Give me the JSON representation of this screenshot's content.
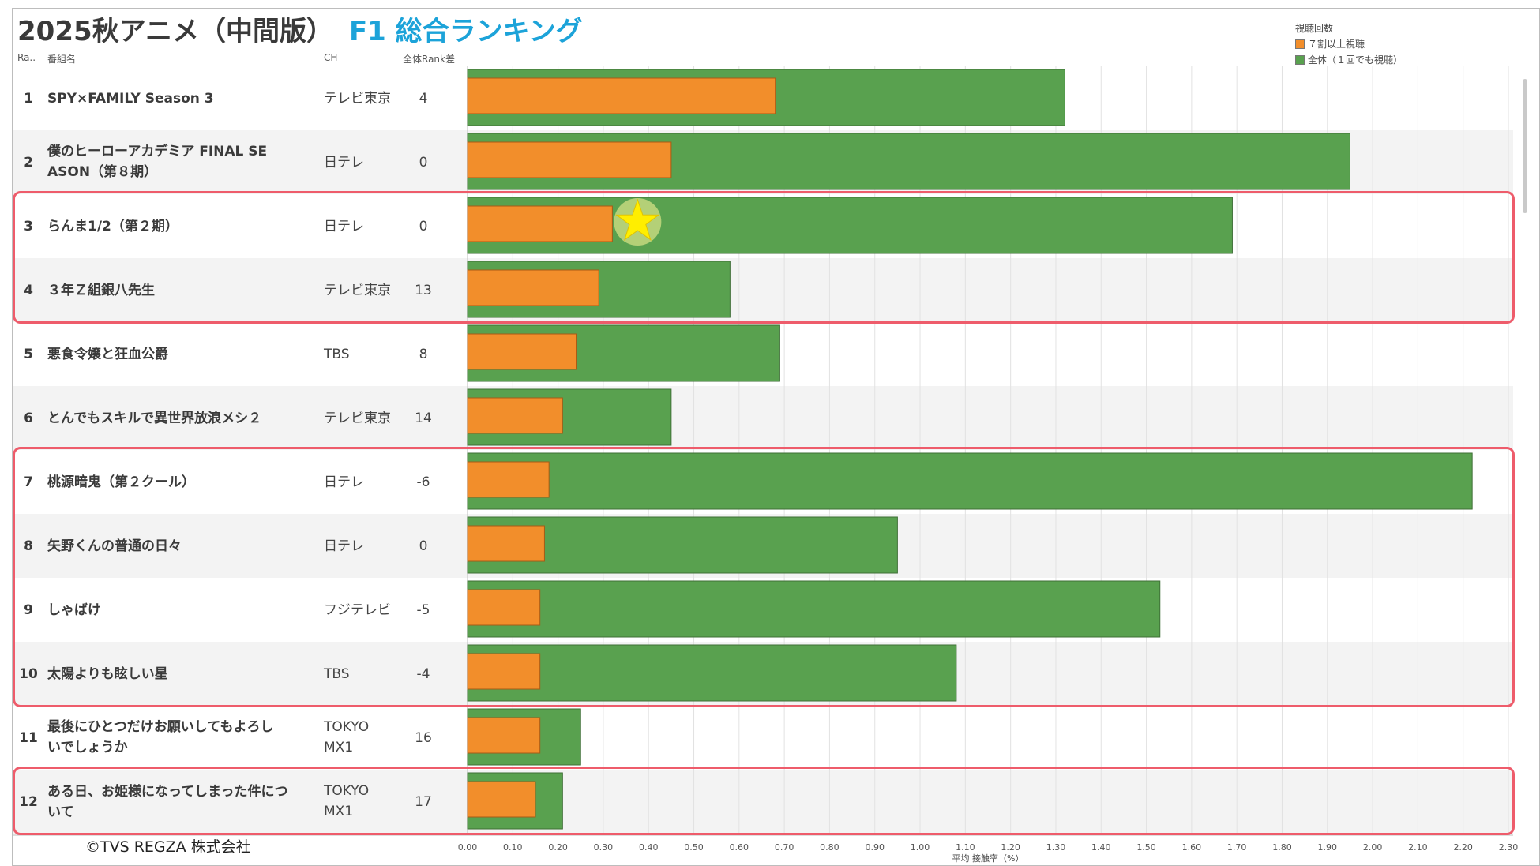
{
  "title": {
    "main": "2025秋アニメ（中間版）",
    "sub": "F1 総合ランキング"
  },
  "headers": {
    "rank": "Ra..",
    "name": "番組名",
    "ch": "CH",
    "rank_diff": "全体Rank差"
  },
  "legend": {
    "title": "視聴回数",
    "items": [
      {
        "label": "７割以上視聴",
        "color": "#f28e2b"
      },
      {
        "label": "全体（１回でも視聴）",
        "color": "#59a14f"
      }
    ]
  },
  "copyright": "©TVS REGZA 株式会社",
  "chart_data": {
    "type": "bar",
    "orientation": "horizontal",
    "title": "F1 総合ランキング",
    "xlabel": "平均 接触率（%）",
    "ylabel": "番組名",
    "xlim": [
      0,
      2.3
    ],
    "xticks": [
      "0.00",
      "0.10",
      "0.20",
      "0.30",
      "0.40",
      "0.50",
      "0.60",
      "0.70",
      "0.80",
      "0.90",
      "1.00",
      "1.10",
      "1.20",
      "1.30",
      "1.40",
      "1.50",
      "1.60",
      "1.70",
      "1.80",
      "1.90",
      "2.00",
      "2.10",
      "2.20",
      "2.30"
    ],
    "grid": true,
    "legend_position": "top-right",
    "rows": [
      {
        "rank": "1",
        "name": "SPY×FAMILY Season 3",
        "ch": "テレビ東京",
        "rank_diff": "4"
      },
      {
        "rank": "2",
        "name": "僕のヒーローアカデミア FINAL SEASON（第８期）",
        "name_lines": [
          "僕のヒーローアカデミア FINAL SE",
          "ASON（第８期）"
        ],
        "ch": "日テレ",
        "rank_diff": "0"
      },
      {
        "rank": "3",
        "name": "らんま1/2（第２期）",
        "ch": "日テレ",
        "rank_diff": "0"
      },
      {
        "rank": "4",
        "name": "３年Ｚ組銀八先生",
        "ch": "テレビ東京",
        "rank_diff": "13"
      },
      {
        "rank": "5",
        "name": "悪食令嬢と狂血公爵",
        "ch": "TBS",
        "rank_diff": "8"
      },
      {
        "rank": "6",
        "name": "とんでもスキルで異世界放浪メシ２",
        "ch": "テレビ東京",
        "rank_diff": "14"
      },
      {
        "rank": "7",
        "name": "桃源暗鬼（第２クール）",
        "ch": "日テレ",
        "rank_diff": "-6"
      },
      {
        "rank": "8",
        "name": "矢野くんの普通の日々",
        "ch": "日テレ",
        "rank_diff": "0"
      },
      {
        "rank": "9",
        "name": "しゃばけ",
        "ch": "フジテレビ",
        "rank_diff": "-5"
      },
      {
        "rank": "10",
        "name": "太陽よりも眩しい星",
        "ch": "TBS",
        "rank_diff": "-4"
      },
      {
        "rank": "11",
        "name": "最後にひとつだけお願いしてもよろしいでしょうか",
        "name_lines": [
          "最後にひとつだけお願いしてもよろし",
          "いでしょうか"
        ],
        "ch": "TOKYO MX1",
        "ch_lines": [
          "TOKYO",
          "MX1"
        ],
        "rank_diff": "16"
      },
      {
        "rank": "12",
        "name": "ある日、お姫様になってしまった件について",
        "ch": "TOKYO MX1",
        "ch_lines": [
          "TOKYO",
          "MX1"
        ],
        "rank_diff": "17"
      }
    ],
    "series": [
      {
        "name": "全体（１回でも視聴）",
        "color": "#59a14f",
        "values": [
          1.32,
          1.95,
          1.69,
          0.58,
          0.69,
          0.45,
          2.22,
          0.95,
          1.53,
          1.08,
          0.25,
          0.21
        ]
      },
      {
        "name": "７割以上視聴",
        "color": "#f28e2b",
        "values": [
          0.68,
          0.45,
          0.32,
          0.29,
          0.24,
          0.21,
          0.18,
          0.17,
          0.16,
          0.16,
          0.16,
          0.15
        ]
      }
    ],
    "annotations": {
      "star_row": 3,
      "highlighted_rows": [
        [
          3,
          4
        ],
        [
          7,
          10
        ],
        [
          12,
          12
        ]
      ]
    }
  }
}
